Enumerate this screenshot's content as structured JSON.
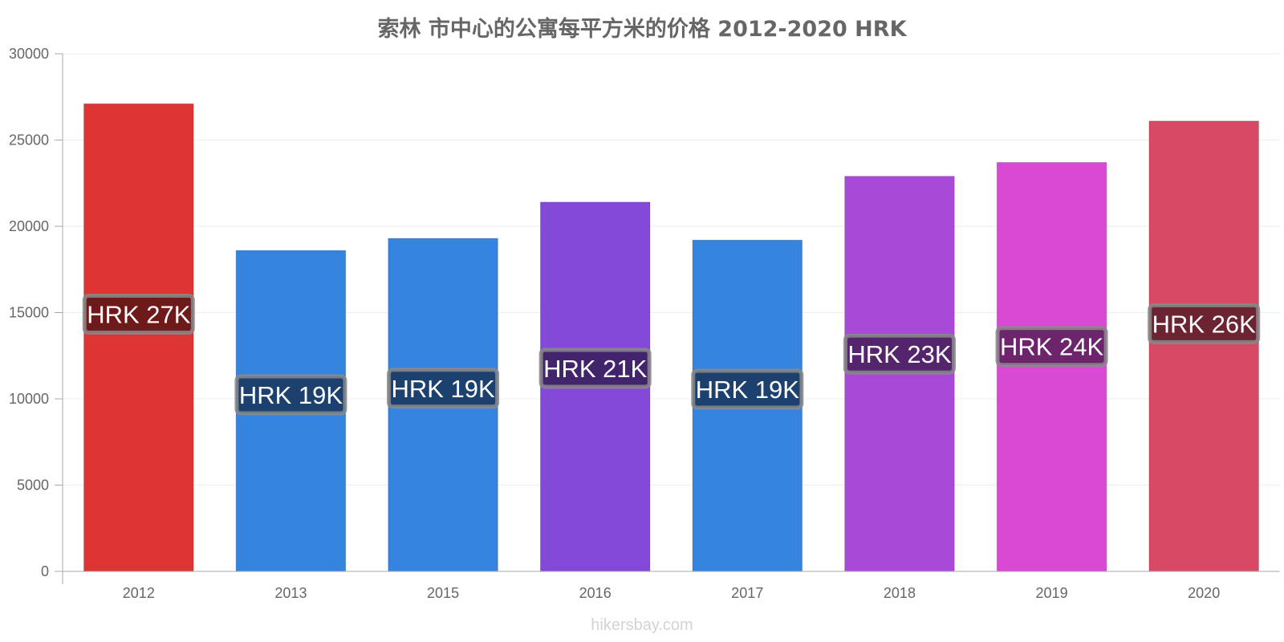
{
  "chart_data": {
    "type": "bar",
    "title": "索林 市中心的公寓每平方米的价格 2012-2020 HRK",
    "categories": [
      "2012",
      "2013",
      "2015",
      "2016",
      "2017",
      "2018",
      "2019",
      "2020"
    ],
    "values": [
      27100,
      18600,
      19300,
      21400,
      19200,
      22900,
      23700,
      26100
    ],
    "value_labels": [
      "HRK 27K",
      "HRK 19K",
      "HRK 19K",
      "HRK 21K",
      "HRK 19K",
      "HRK 23K",
      "HRK 24K",
      "HRK 26K"
    ],
    "colors": [
      "#e03434",
      "#3584e0",
      "#3584e0",
      "#8449d8",
      "#3584e0",
      "#a849d8",
      "#d849d4",
      "#d84966"
    ],
    "label_bg_colors": [
      "#6e1a1a",
      "#1c416e",
      "#1c416e",
      "#42246c",
      "#1c416e",
      "#54246c",
      "#6c246a",
      "#6c2433"
    ],
    "ylim": [
      0,
      30000
    ],
    "yticks": [
      0,
      5000,
      10000,
      15000,
      20000,
      25000,
      30000
    ],
    "grid": true,
    "xlabel": "",
    "ylabel": ""
  },
  "watermark": "hikersbay.com"
}
